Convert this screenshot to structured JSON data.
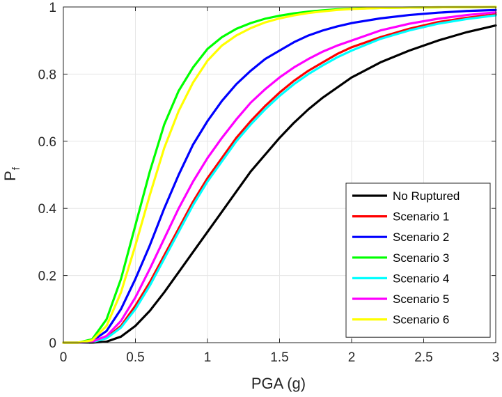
{
  "chart_data": {
    "type": "line",
    "title": "",
    "xlabel": "PGA (g)",
    "ylabel": "P",
    "ylabel_subscript": "f",
    "xlim": [
      0,
      3
    ],
    "ylim": [
      0,
      1
    ],
    "xticks": [
      0,
      0.5,
      1,
      1.5,
      2,
      2.5,
      3
    ],
    "xtick_labels": [
      "0",
      "0.5",
      "1",
      "1.5",
      "2",
      "2.5",
      "3"
    ],
    "yticks": [
      0,
      0.2,
      0.4,
      0.6,
      0.8,
      1
    ],
    "ytick_labels": [
      "0",
      "0.2",
      "0.4",
      "0.6",
      "0.8",
      "1"
    ],
    "grid": true,
    "legend_position": "bottom-right",
    "x": [
      0,
      0.1,
      0.2,
      0.3,
      0.4,
      0.5,
      0.6,
      0.7,
      0.8,
      0.9,
      1.0,
      1.1,
      1.2,
      1.3,
      1.4,
      1.5,
      1.6,
      1.7,
      1.8,
      1.9,
      2.0,
      2.2,
      2.4,
      2.6,
      2.8,
      3.0
    ],
    "series": [
      {
        "name": "No Ruptured",
        "color": "#000000",
        "values": [
          0,
          0,
          0.0001,
          0.003,
          0.018,
          0.05,
          0.095,
          0.15,
          0.21,
          0.27,
          0.33,
          0.39,
          0.45,
          0.51,
          0.56,
          0.61,
          0.655,
          0.695,
          0.73,
          0.76,
          0.79,
          0.835,
          0.87,
          0.9,
          0.925,
          0.945
        ]
      },
      {
        "name": "Scenario 1",
        "color": "#ff0000",
        "values": [
          0,
          0,
          0.002,
          0.015,
          0.05,
          0.11,
          0.18,
          0.26,
          0.34,
          0.42,
          0.49,
          0.55,
          0.61,
          0.66,
          0.705,
          0.745,
          0.78,
          0.81,
          0.835,
          0.86,
          0.88,
          0.91,
          0.935,
          0.955,
          0.968,
          0.978
        ]
      },
      {
        "name": "Scenario 2",
        "color": "#0000ff",
        "values": [
          0,
          0,
          0.005,
          0.035,
          0.1,
          0.19,
          0.29,
          0.4,
          0.5,
          0.59,
          0.66,
          0.72,
          0.77,
          0.81,
          0.845,
          0.87,
          0.895,
          0.915,
          0.93,
          0.942,
          0.952,
          0.966,
          0.976,
          0.983,
          0.988,
          0.991
        ]
      },
      {
        "name": "Scenario 3",
        "color": "#00ff00",
        "values": [
          0,
          0,
          0.01,
          0.07,
          0.19,
          0.35,
          0.51,
          0.65,
          0.75,
          0.82,
          0.875,
          0.91,
          0.935,
          0.952,
          0.965,
          0.974,
          0.981,
          0.986,
          0.99,
          0.993,
          0.995,
          0.997,
          0.998,
          0.999,
          0.9995,
          1.0
        ]
      },
      {
        "name": "Scenario 4",
        "color": "#00ffff",
        "values": [
          0,
          0,
          0.002,
          0.013,
          0.045,
          0.1,
          0.17,
          0.25,
          0.33,
          0.41,
          0.48,
          0.54,
          0.6,
          0.65,
          0.695,
          0.735,
          0.77,
          0.8,
          0.826,
          0.85,
          0.87,
          0.905,
          0.93,
          0.95,
          0.964,
          0.975
        ]
      },
      {
        "name": "Scenario 5",
        "color": "#ff00ff",
        "values": [
          0,
          0,
          0.003,
          0.02,
          0.065,
          0.135,
          0.22,
          0.31,
          0.4,
          0.48,
          0.55,
          0.61,
          0.665,
          0.715,
          0.755,
          0.79,
          0.82,
          0.845,
          0.867,
          0.885,
          0.9,
          0.93,
          0.95,
          0.965,
          0.976,
          0.984
        ]
      },
      {
        "name": "Scenario 6",
        "color": "#ffff00",
        "values": [
          0,
          0,
          0.007,
          0.05,
          0.15,
          0.29,
          0.44,
          0.58,
          0.69,
          0.775,
          0.84,
          0.885,
          0.915,
          0.937,
          0.954,
          0.966,
          0.975,
          0.982,
          0.987,
          0.991,
          0.994,
          0.997,
          0.998,
          0.999,
          0.9995,
          1.0
        ]
      }
    ]
  }
}
